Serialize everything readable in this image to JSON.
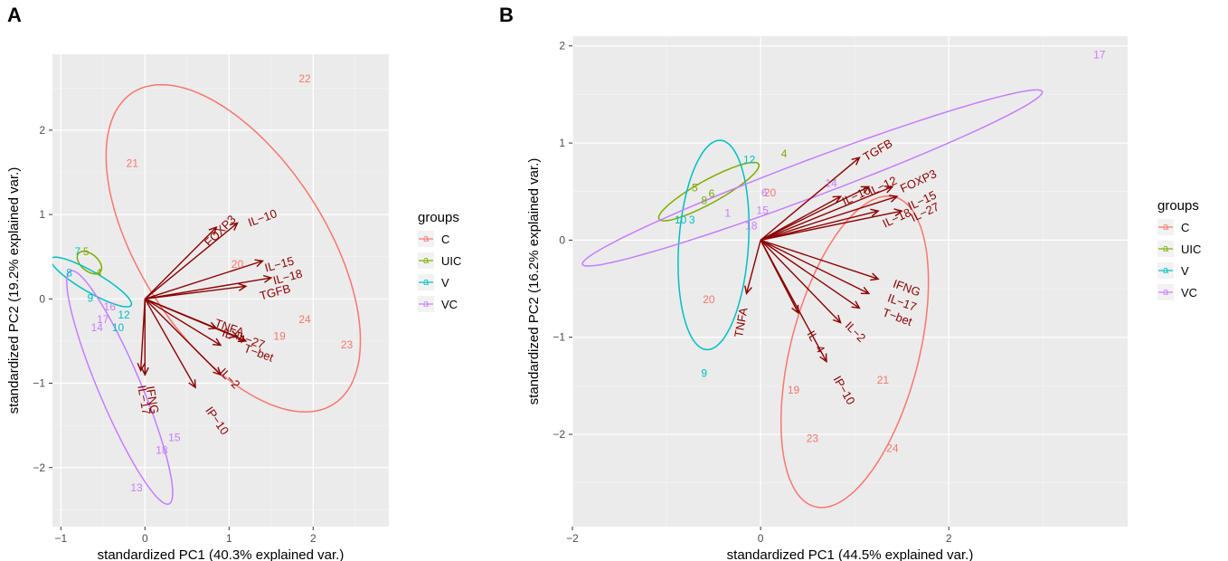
{
  "colors": {
    "C": "#F8766D",
    "UIC": "#7CAE00",
    "V": "#00BFC4",
    "VC": "#C77CFF",
    "arrow": "#8b0000",
    "panel_bg": "#EBEBEB",
    "grid_major": "#ffffff",
    "grid_minor": "#F5F5F5"
  },
  "chart_data": [
    {
      "type": "scatter",
      "panel": "A",
      "xlabel": "standardized PC1 (40.3% explained var.)",
      "ylabel": "standardized PC2 (19.2% explained var.)",
      "xlim": [
        -1.1,
        2.9
      ],
      "ylim": [
        -2.7,
        2.9
      ],
      "xticks": [
        -1,
        0,
        1,
        2
      ],
      "yticks": [
        -2,
        -1,
        0,
        1,
        2
      ],
      "legend": {
        "title": "groups",
        "entries": [
          "C",
          "UIC",
          "V",
          "VC"
        ],
        "key_symbol": "a"
      },
      "points": [
        {
          "label": "22",
          "group": "C",
          "x": 1.9,
          "y": 2.6
        },
        {
          "label": "21",
          "group": "C",
          "x": -0.15,
          "y": 1.6
        },
        {
          "label": "20",
          "group": "C",
          "x": 1.1,
          "y": 0.4
        },
        {
          "label": "24",
          "group": "C",
          "x": 1.9,
          "y": -0.25
        },
        {
          "label": "19",
          "group": "C",
          "x": 1.6,
          "y": -0.45
        },
        {
          "label": "23",
          "group": "C",
          "x": 2.4,
          "y": -0.55
        },
        {
          "label": "7",
          "group": "V",
          "x": -0.8,
          "y": 0.55
        },
        {
          "label": "5",
          "group": "UIC",
          "x": -0.7,
          "y": 0.55
        },
        {
          "label": "4",
          "group": "UIC",
          "x": -0.55,
          "y": 0.3
        },
        {
          "label": "8",
          "group": "V",
          "x": -0.9,
          "y": 0.3
        },
        {
          "label": "9",
          "group": "V",
          "x": -0.65,
          "y": 0.0
        },
        {
          "label": "16",
          "group": "VC",
          "x": -0.42,
          "y": -0.1
        },
        {
          "label": "12",
          "group": "V",
          "x": -0.25,
          "y": -0.2
        },
        {
          "label": "17",
          "group": "VC",
          "x": -0.5,
          "y": -0.25
        },
        {
          "label": "14",
          "group": "VC",
          "x": -0.57,
          "y": -0.35
        },
        {
          "label": "10",
          "group": "V",
          "x": -0.32,
          "y": -0.35
        },
        {
          "label": "15",
          "group": "VC",
          "x": 0.35,
          "y": -1.65
        },
        {
          "label": "18",
          "group": "VC",
          "x": 0.2,
          "y": -1.8
        },
        {
          "label": "13",
          "group": "VC",
          "x": -0.1,
          "y": -2.25
        }
      ],
      "ellipses": [
        {
          "group": "C",
          "cx": 1.05,
          "cy": 0.6,
          "rx": 2.2,
          "ry": 1.1,
          "angle": -57
        },
        {
          "group": "UIC",
          "cx": -0.66,
          "cy": 0.43,
          "rx": 0.17,
          "ry": 0.1,
          "angle": -40
        },
        {
          "group": "V",
          "cx": -0.64,
          "cy": 0.2,
          "rx": 0.55,
          "ry": 0.12,
          "angle": -30
        },
        {
          "group": "VC",
          "cx": -0.3,
          "cy": -1.05,
          "rx": 1.5,
          "ry": 0.25,
          "angle": -67
        }
      ],
      "arrows": [
        {
          "name": "FOXP3",
          "x": 0.85,
          "y": 0.85,
          "lx": 0.9,
          "ly": 0.8,
          "rot": -45
        },
        {
          "name": "IL-10",
          "x": 1.1,
          "y": 0.9,
          "lx": 1.4,
          "ly": 0.95,
          "rot": -20
        },
        {
          "name": "IL-15",
          "x": 1.4,
          "y": 0.45,
          "lx": 1.6,
          "ly": 0.4,
          "rot": -15
        },
        {
          "name": "IL-18",
          "x": 1.5,
          "y": 0.25,
          "lx": 1.7,
          "ly": 0.25,
          "rot": -15
        },
        {
          "name": "TGFB",
          "x": 1.2,
          "y": 0.15,
          "lx": 1.55,
          "ly": 0.07,
          "rot": -15
        },
        {
          "name": "TNFA",
          "x": 0.85,
          "y": -0.35,
          "lx": 1.0,
          "ly": -0.35,
          "rot": 20
        },
        {
          "name": "IL-4",
          "x": 0.9,
          "y": -0.55,
          "lx": 1.05,
          "ly": -0.45,
          "rot": 20
        },
        {
          "name": "IL-27",
          "x": 1.1,
          "y": -0.45,
          "lx": 1.25,
          "ly": -0.5,
          "rot": 20
        },
        {
          "name": "T-bet",
          "x": 1.2,
          "y": -0.5,
          "lx": 1.35,
          "ly": -0.65,
          "rot": 20
        },
        {
          "name": "IL-2",
          "x": 0.9,
          "y": -0.9,
          "lx": 1.0,
          "ly": -0.95,
          "rot": 45
        },
        {
          "name": "IP-10",
          "x": 0.6,
          "y": -1.05,
          "lx": 0.85,
          "ly": -1.45,
          "rot": 55
        },
        {
          "name": "IFNG",
          "x": 0.0,
          "y": -0.9,
          "lx": 0.08,
          "ly": -1.2,
          "rot": 80
        },
        {
          "name": "IL-17",
          "x": -0.05,
          "y": -0.85,
          "lx": -0.02,
          "ly": -1.2,
          "rot": 80
        }
      ]
    },
    {
      "type": "scatter",
      "panel": "B",
      "xlabel": "standardized PC1 (44.5% explained var.)",
      "ylabel": "standardized PC2 (16.2% explained var.)",
      "xlim": [
        -2.0,
        3.9
      ],
      "ylim": [
        -2.95,
        2.1
      ],
      "xticks": [
        -2,
        0,
        2
      ],
      "yticks": [
        -2,
        -1,
        0,
        1,
        2
      ],
      "legend": {
        "title": "groups",
        "entries": [
          "C",
          "UIC",
          "V",
          "VC"
        ],
        "key_symbol": "a"
      },
      "points": [
        {
          "label": "17",
          "group": "VC",
          "x": 3.6,
          "y": 1.9
        },
        {
          "label": "4",
          "group": "UIC",
          "x": 0.25,
          "y": 0.88
        },
        {
          "label": "12",
          "group": "V",
          "x": -0.12,
          "y": 0.82
        },
        {
          "label": "14",
          "group": "VC",
          "x": 0.75,
          "y": 0.58
        },
        {
          "label": "5",
          "group": "UIC",
          "x": -0.7,
          "y": 0.53
        },
        {
          "label": "6",
          "group": "UIC",
          "x": -0.52,
          "y": 0.47
        },
        {
          "label": "8",
          "group": "UIC",
          "x": -0.6,
          "y": 0.4
        },
        {
          "label": "20",
          "group": "C",
          "x": 0.1,
          "y": 0.48
        },
        {
          "label": "6",
          "group": "VC",
          "x": 0.04,
          "y": 0.48
        },
        {
          "label": "10",
          "group": "V",
          "x": -0.85,
          "y": 0.2
        },
        {
          "label": "3",
          "group": "V",
          "x": -0.73,
          "y": 0.2
        },
        {
          "label": "1",
          "group": "VC",
          "x": -0.35,
          "y": 0.27
        },
        {
          "label": "15",
          "group": "VC",
          "x": 0.02,
          "y": 0.3
        },
        {
          "label": "18",
          "group": "VC",
          "x": -0.1,
          "y": 0.14
        },
        {
          "label": "20",
          "group": "C",
          "x": -0.55,
          "y": -0.62
        },
        {
          "label": "9",
          "group": "V",
          "x": -0.6,
          "y": -1.38
        },
        {
          "label": "19",
          "group": "C",
          "x": 0.35,
          "y": -1.55
        },
        {
          "label": "21",
          "group": "C",
          "x": 1.3,
          "y": -1.45
        },
        {
          "label": "23",
          "group": "C",
          "x": 0.55,
          "y": -2.05
        },
        {
          "label": "24",
          "group": "C",
          "x": 1.4,
          "y": -2.15
        }
      ],
      "ellipses": [
        {
          "group": "C",
          "cx": 1.0,
          "cy": -1.15,
          "rx": 1.65,
          "ry": 0.68,
          "angle": -105
        },
        {
          "group": "UIC",
          "cx": -0.55,
          "cy": 0.5,
          "rx": 0.6,
          "ry": 0.12,
          "angle": 28
        },
        {
          "group": "V",
          "cx": -0.5,
          "cy": -0.05,
          "rx": 1.08,
          "ry": 0.37,
          "angle": -94
        },
        {
          "group": "VC",
          "cx": 0.55,
          "cy": 0.64,
          "rx": 2.6,
          "ry": 0.19,
          "angle": 20
        }
      ],
      "arrows": [
        {
          "name": "TGFB",
          "x": 1.05,
          "y": 0.85,
          "lx": 1.25,
          "ly": 0.92,
          "rot": -30
        },
        {
          "name": "IL-10",
          "x": 0.85,
          "y": 0.45,
          "lx": 1.02,
          "ly": 0.45,
          "rot": -25
        },
        {
          "name": "IL-12",
          "x": 1.15,
          "y": 0.55,
          "lx": 1.3,
          "ly": 0.55,
          "rot": -25
        },
        {
          "name": "FOXP3",
          "x": 1.4,
          "y": 0.55,
          "lx": 1.68,
          "ly": 0.6,
          "rot": -25
        },
        {
          "name": "IL-15",
          "x": 1.45,
          "y": 0.45,
          "lx": 1.72,
          "ly": 0.4,
          "rot": -25
        },
        {
          "name": "IL-18",
          "x": 1.25,
          "y": 0.3,
          "lx": 1.45,
          "ly": 0.22,
          "rot": -25
        },
        {
          "name": "IL-27",
          "x": 1.5,
          "y": 0.3,
          "lx": 1.75,
          "ly": 0.28,
          "rot": -25
        },
        {
          "name": "IFNG",
          "x": 1.25,
          "y": -0.4,
          "lx": 1.55,
          "ly": -0.5,
          "rot": 20
        },
        {
          "name": "IL-17",
          "x": 1.15,
          "y": -0.55,
          "lx": 1.5,
          "ly": -0.65,
          "rot": 20
        },
        {
          "name": "T-bet",
          "x": 1.05,
          "y": -0.7,
          "lx": 1.45,
          "ly": -0.8,
          "rot": 20
        },
        {
          "name": "IL-2",
          "x": 0.85,
          "y": -0.85,
          "lx": 1.0,
          "ly": -0.95,
          "rot": 45
        },
        {
          "name": "IL-4",
          "x": 0.4,
          "y": -0.75,
          "lx": 0.58,
          "ly": -1.05,
          "rot": 60
        },
        {
          "name": "IP-10",
          "x": 0.7,
          "y": -1.25,
          "lx": 0.88,
          "ly": -1.55,
          "rot": 60
        },
        {
          "name": "TNFA",
          "x": -0.15,
          "y": -0.55,
          "lx": -0.2,
          "ly": -0.85,
          "rot": -80
        }
      ]
    }
  ]
}
